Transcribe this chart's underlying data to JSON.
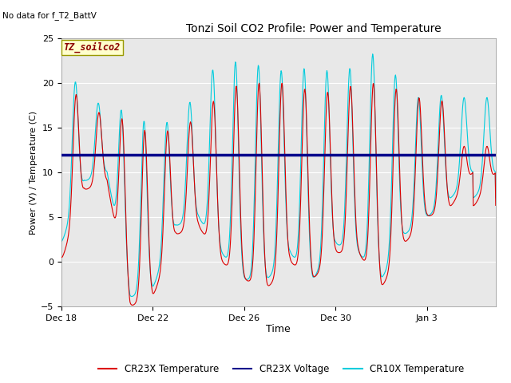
{
  "title": "Tonzi Soil CO2 Profile: Power and Temperature",
  "top_left_note": "No data for f_T2_BattV",
  "legend_box_label": "TZ_soilco2",
  "xlabel": "Time",
  "ylabel": "Power (V) / Temperature (C)",
  "ylim": [
    -5,
    25
  ],
  "yticks": [
    -5,
    0,
    5,
    10,
    15,
    20,
    25
  ],
  "fig_bg_color": "#ffffff",
  "plot_bg_color": "#e8e8e8",
  "grid_color": "#ffffff",
  "cr23x_temp_color": "#dd0000",
  "cr23x_volt_color": "#00008b",
  "cr10x_temp_color": "#00ccdd",
  "cr23x_volt_value": 12.0,
  "xtick_labels": [
    "Dec 18",
    "Dec 22",
    "Dec 26",
    "Dec 30",
    "Jan 3"
  ],
  "xtick_days": [
    0,
    4,
    8,
    12,
    16
  ],
  "total_days": 19,
  "legend_entries": [
    "CR23X Temperature",
    "CR23X Voltage",
    "CR10X Temperature"
  ]
}
